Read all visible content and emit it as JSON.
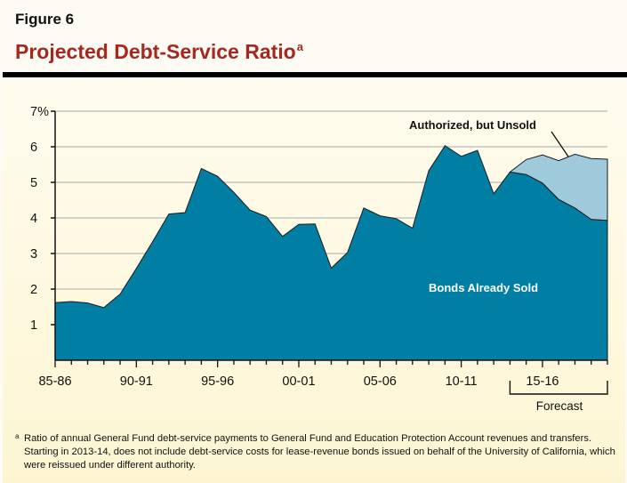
{
  "figure_label": "Figure 6",
  "title": "Projected Debt-Service Ratio",
  "title_footnote_marker": "a",
  "footnote": {
    "marker": "a",
    "text": "Ratio of annual General Fund debt-service payments to General Fund and Education Protection Account revenues and transfers. Starting in 2013-14, does not include debt-service costs for lease-revenue bonds issued on behalf of the University of California, which were reissued under different authority."
  },
  "colors": {
    "title": "#a4281f",
    "bonds_sold": "#007ea3",
    "authorized_unsold": "#9ecadb"
  },
  "chart_data": {
    "type": "area",
    "stacked": true,
    "title": "Projected Debt-Service Ratio",
    "xlabel": "",
    "ylabel": "",
    "x": [
      "85-86",
      "86-87",
      "87-88",
      "88-89",
      "89-90",
      "90-91",
      "91-92",
      "92-93",
      "93-94",
      "94-95",
      "95-96",
      "96-97",
      "97-98",
      "98-99",
      "99-00",
      "00-01",
      "01-02",
      "02-03",
      "03-04",
      "04-05",
      "05-06",
      "06-07",
      "07-08",
      "08-09",
      "09-10",
      "10-11",
      "11-12",
      "12-13",
      "13-14",
      "14-15",
      "15-16",
      "16-17",
      "17-18",
      "18-19",
      "19-20"
    ],
    "x_tick_labels": [
      "85-86",
      "90-91",
      "95-96",
      "00-01",
      "05-06",
      "10-11",
      "15-16"
    ],
    "y_tick_labels": [
      "1",
      "2",
      "3",
      "4",
      "5",
      "6",
      "7%"
    ],
    "ylim": [
      0,
      7
    ],
    "grid": true,
    "series": [
      {
        "name": "Bonds Already Sold",
        "values": [
          1.62,
          1.65,
          1.61,
          1.48,
          1.86,
          2.58,
          3.33,
          4.11,
          4.15,
          5.39,
          5.17,
          4.72,
          4.22,
          4.04,
          3.48,
          3.82,
          3.83,
          2.59,
          3.03,
          4.28,
          4.06,
          3.98,
          3.71,
          5.33,
          6.03,
          5.73,
          5.9,
          4.68,
          5.29,
          5.22,
          4.98,
          4.52,
          4.28,
          3.96,
          3.93
        ]
      },
      {
        "name": "Authorized, but Unsold",
        "values": [
          null,
          null,
          null,
          null,
          null,
          null,
          null,
          null,
          null,
          null,
          null,
          null,
          null,
          null,
          null,
          null,
          null,
          null,
          null,
          null,
          null,
          null,
          null,
          null,
          null,
          null,
          null,
          null,
          0,
          0.42,
          0.79,
          1.09,
          1.51,
          1.71,
          1.72
        ]
      }
    ],
    "annotations": {
      "forecast_label": "Forecast",
      "forecast_start": "13-14",
      "forecast_end": "19-20"
    }
  }
}
